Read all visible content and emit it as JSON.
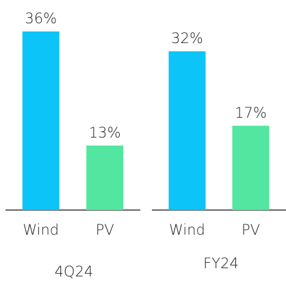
{
  "chart_data": [
    {
      "type": "bar",
      "title": "4Q24",
      "categories": [
        "Wind",
        "PV"
      ],
      "values": [
        36,
        13
      ],
      "value_labels": [
        "36%",
        "13%"
      ],
      "colors": [
        "#0cc4f8",
        "#52e6a0"
      ]
    },
    {
      "type": "bar",
      "title": "FY24",
      "categories": [
        "Wind",
        "PV"
      ],
      "values": [
        32,
        17
      ],
      "value_labels": [
        "32%",
        "17%"
      ],
      "colors": [
        "#0cc4f8",
        "#52e6a0"
      ]
    }
  ]
}
